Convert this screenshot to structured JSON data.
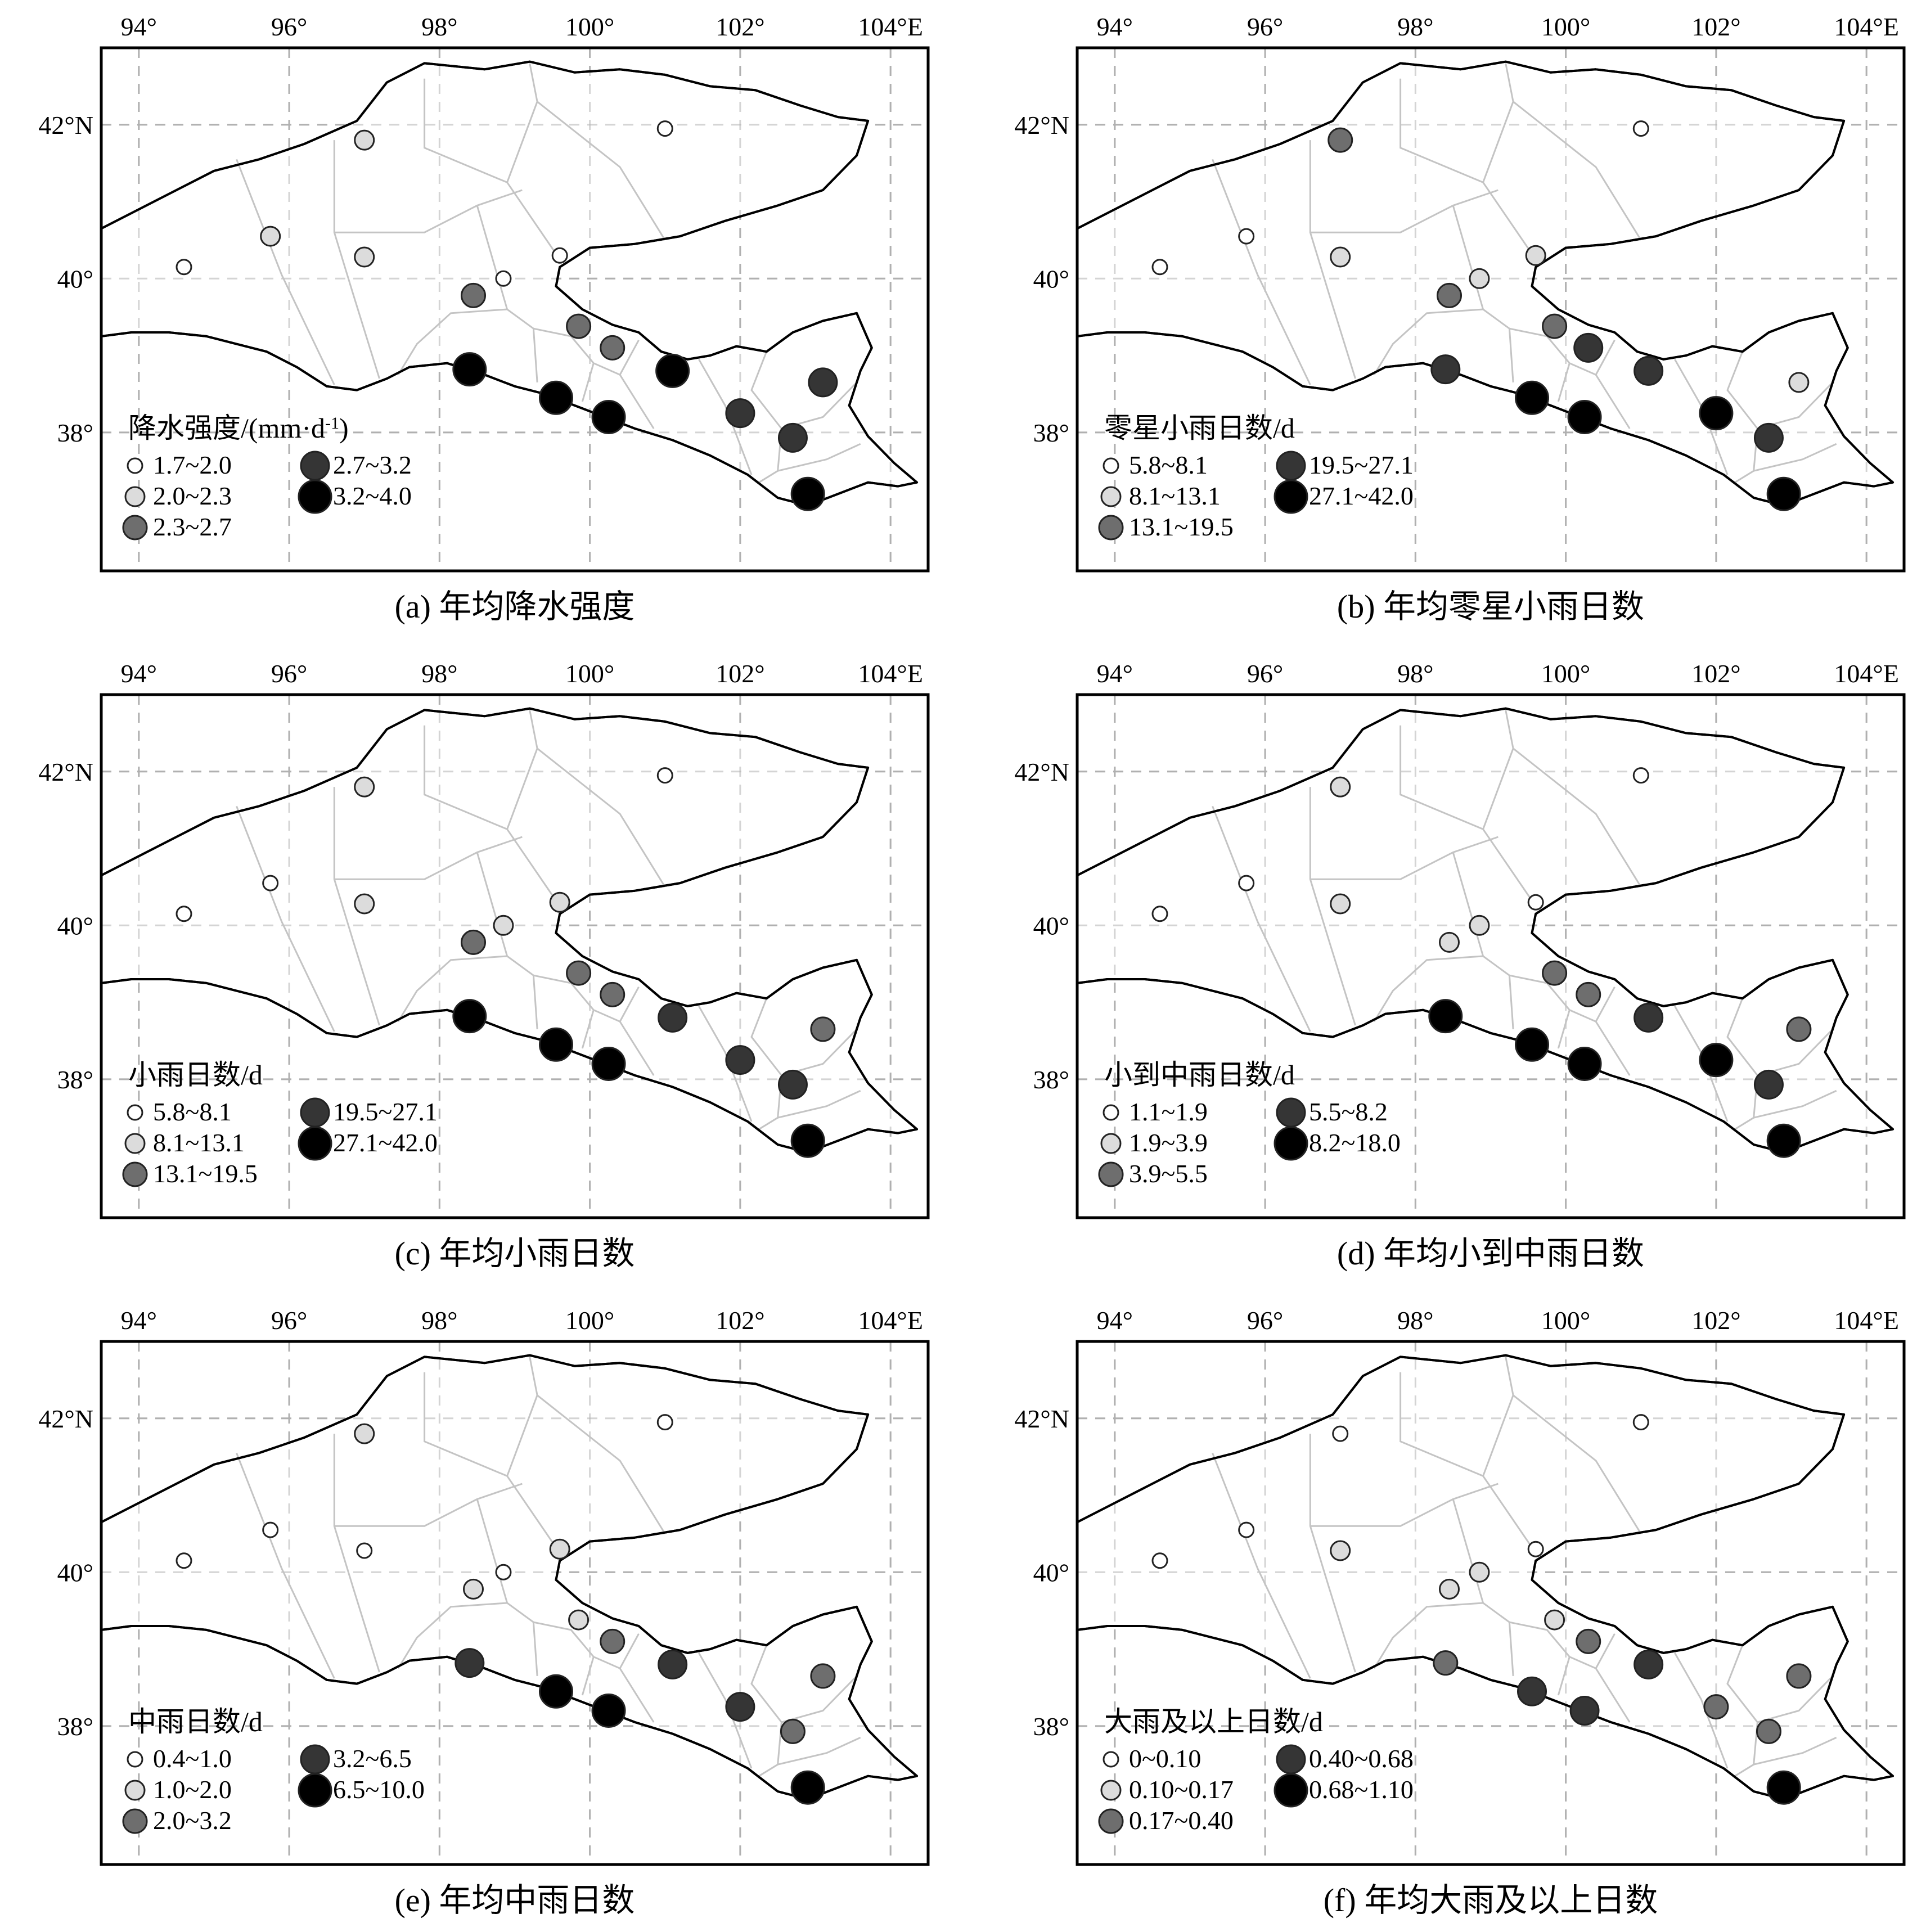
{
  "axes": {
    "lon_ticks": [
      "94°",
      "96°",
      "98°",
      "100°",
      "102°",
      "104°E"
    ],
    "lat_ticks": [
      "42°N",
      "40°",
      "38°"
    ]
  },
  "class_colors": [
    "#ffffff",
    "#dcdcdc",
    "#6e6e6e",
    "#353535",
    "#000000"
  ],
  "stations": [
    {
      "lon": 94.6,
      "lat": 40.15
    },
    {
      "lon": 95.75,
      "lat": 40.55
    },
    {
      "lon": 97.0,
      "lat": 41.8
    },
    {
      "lon": 97.0,
      "lat": 40.28
    },
    {
      "lon": 101.0,
      "lat": 41.95
    },
    {
      "lon": 99.6,
      "lat": 40.3
    },
    {
      "lon": 98.85,
      "lat": 40.0
    },
    {
      "lon": 98.45,
      "lat": 39.78
    },
    {
      "lon": 99.85,
      "lat": 39.38
    },
    {
      "lon": 100.3,
      "lat": 39.1
    },
    {
      "lon": 98.4,
      "lat": 38.82
    },
    {
      "lon": 101.1,
      "lat": 38.8
    },
    {
      "lon": 99.55,
      "lat": 38.45
    },
    {
      "lon": 100.25,
      "lat": 38.2
    },
    {
      "lon": 102.0,
      "lat": 38.25
    },
    {
      "lon": 103.1,
      "lat": 38.65
    },
    {
      "lon": 102.7,
      "lat": 37.93
    },
    {
      "lon": 102.9,
      "lat": 37.2
    }
  ],
  "panels": [
    {
      "id": "a",
      "caption": "(a) 年均降水强度",
      "legend_title": "降水强度/(mm·d",
      "legend_title_sup": "-1",
      "legend_title_end": ")",
      "legend_items": [
        "1.7~2.0",
        "2.0~2.3",
        "2.3~2.7",
        "2.7~3.2",
        "3.2~4.0"
      ],
      "station_classes": [
        0,
        1,
        1,
        1,
        0,
        0,
        0,
        2,
        2,
        2,
        4,
        4,
        4,
        4,
        3,
        3,
        3,
        4
      ]
    },
    {
      "id": "b",
      "caption": "(b) 年均零星小雨日数",
      "legend_title": "零星小雨日数/d",
      "legend_items": [
        "5.8~8.1",
        "8.1~13.1",
        "13.1~19.5",
        "19.5~27.1",
        "27.1~42.0"
      ],
      "station_classes": [
        0,
        0,
        2,
        1,
        0,
        1,
        1,
        2,
        2,
        3,
        3,
        3,
        4,
        4,
        4,
        1,
        3,
        4
      ]
    },
    {
      "id": "c",
      "caption": "(c) 年均小雨日数",
      "legend_title": "小雨日数/d",
      "legend_items": [
        "5.8~8.1",
        "8.1~13.1",
        "13.1~19.5",
        "19.5~27.1",
        "27.1~42.0"
      ],
      "station_classes": [
        0,
        0,
        1,
        1,
        0,
        1,
        1,
        2,
        2,
        2,
        4,
        3,
        4,
        4,
        3,
        2,
        3,
        4
      ]
    },
    {
      "id": "d",
      "caption": "(d) 年均小到中雨日数",
      "legend_title": "小到中雨日数/d",
      "legend_items": [
        "1.1~1.9",
        "1.9~3.9",
        "3.9~5.5",
        "5.5~8.2",
        "8.2~18.0"
      ],
      "station_classes": [
        0,
        0,
        1,
        1,
        0,
        0,
        1,
        1,
        2,
        2,
        4,
        3,
        4,
        4,
        4,
        2,
        3,
        4
      ]
    },
    {
      "id": "e",
      "caption": "(e) 年均中雨日数",
      "legend_title": "中雨日数/d",
      "legend_items": [
        "0.4~1.0",
        "1.0~2.0",
        "2.0~3.2",
        "3.2~6.5",
        "6.5~10.0"
      ],
      "station_classes": [
        0,
        0,
        1,
        0,
        0,
        1,
        0,
        1,
        1,
        2,
        3,
        3,
        4,
        4,
        3,
        2,
        2,
        4
      ]
    },
    {
      "id": "f",
      "caption": "(f) 年均大雨及以上日数",
      "legend_title": "大雨及以上日数/d",
      "legend_items": [
        "0~0.10",
        "0.10~0.17",
        "0.17~0.40",
        "0.40~0.68",
        "0.68~1.10"
      ],
      "station_classes": [
        0,
        0,
        0,
        1,
        0,
        0,
        1,
        1,
        1,
        2,
        2,
        3,
        3,
        3,
        2,
        2,
        2,
        4
      ]
    }
  ]
}
